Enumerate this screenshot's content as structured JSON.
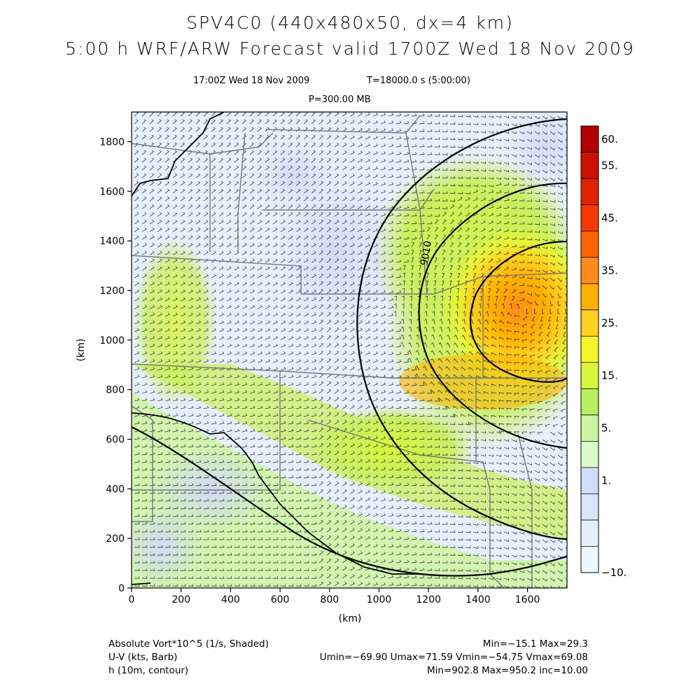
{
  "header": {
    "title_line1": "SPV4C0 (440x480x50, dx=4 km)",
    "title_line2": "5:00 h WRF/ARW Forecast valid 1700Z Wed 18 Nov 2009",
    "time_label": "17:00Z Wed 18 Nov 2009",
    "seconds_label": "T=18000.0 s (5:00:00)",
    "level_label": "P=300.00 MB"
  },
  "axes": {
    "x_unit": "(km)",
    "y_unit": "(km)",
    "x_ticks": [
      "0",
      "200",
      "400",
      "600",
      "800",
      "1000",
      "1200",
      "1400",
      "1600"
    ],
    "y_ticks": [
      "0",
      "200",
      "400",
      "600",
      "800",
      "1000",
      "1200",
      "1400",
      "1600",
      "1800"
    ],
    "x_range_km": [
      0,
      1760
    ],
    "y_range_km": [
      0,
      1920
    ]
  },
  "contour_label": "9010",
  "colorbar": {
    "labels": [
      "60.",
      "55.",
      "45.",
      "35.",
      "25.",
      "15.",
      "5.",
      "1.",
      "−10."
    ],
    "colors": [
      "#b30000",
      "#cc1100",
      "#e02200",
      "#f23a00",
      "#ff6400",
      "#ff8c1a",
      "#ffb000",
      "#ffd020",
      "#f5f52a",
      "#d8f53a",
      "#b9ef5e",
      "#cdf5a0",
      "#dcfac8",
      "#d1dcf8",
      "#dae4fa",
      "#e6f0fc",
      "#eef6fe"
    ]
  },
  "footer": {
    "left": [
      "Absolute Vort*10^5 (1/s, Shaded)",
      "U-V (kts, Barb)",
      "h (10m, contour)"
    ],
    "right": [
      "Min=−15.1 Max=29.3",
      "Umin=−69.90 Umax=71.59 Vmin=−54.75 Vmax=69.08",
      "Min=902.8 Max=950.2 inc=10.00"
    ]
  }
}
